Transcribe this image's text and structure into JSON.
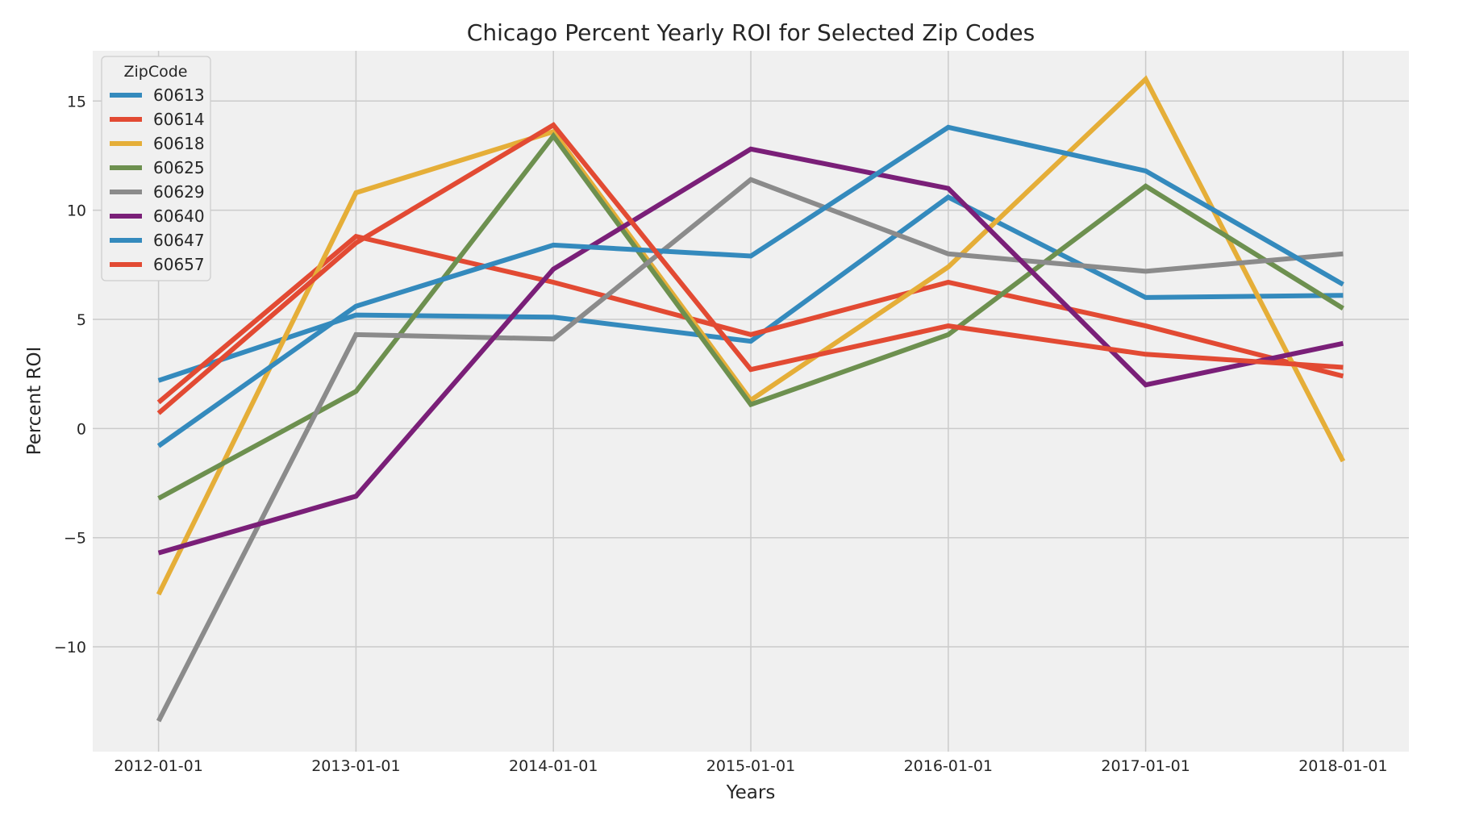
{
  "chart_data": {
    "type": "line",
    "title": "Chicago Percent Yearly ROI for Selected Zip Codes",
    "xlabel": "Years",
    "ylabel": "Percent ROI",
    "x": [
      "2012-01-01",
      "2013-01-01",
      "2014-01-01",
      "2015-01-01",
      "2016-01-01",
      "2017-01-01",
      "2018-01-01"
    ],
    "yticks": [
      -10,
      -5,
      0,
      5,
      10,
      15
    ],
    "ytick_labels": [
      "−10",
      "−5",
      "0",
      "5",
      "10",
      "15"
    ],
    "ylim": [
      -14.8,
      17.3
    ],
    "grid": true,
    "legend": {
      "title": "ZipCode",
      "placement": "top-left"
    },
    "series": [
      {
        "name": "60613",
        "color": "#348ABD",
        "values": [
          2.2,
          5.2,
          5.1,
          4.0,
          10.6,
          6.0,
          6.1
        ]
      },
      {
        "name": "60614",
        "color": "#E24A33",
        "values": [
          1.2,
          8.8,
          6.7,
          4.3,
          6.7,
          4.7,
          2.4
        ]
      },
      {
        "name": "60618",
        "color": "#E5AE38",
        "values": [
          -7.6,
          10.8,
          13.6,
          1.3,
          7.4,
          16.0,
          -1.5
        ]
      },
      {
        "name": "60625",
        "color": "#6D904F",
        "values": [
          -3.2,
          1.7,
          13.4,
          1.1,
          4.3,
          11.1,
          5.5
        ]
      },
      {
        "name": "60629",
        "color": "#8B8B8B",
        "values": [
          -13.4,
          4.3,
          4.1,
          11.4,
          8.0,
          7.2,
          8.0
        ]
      },
      {
        "name": "60640",
        "color": "#7A1F78",
        "values": [
          -5.7,
          -3.1,
          7.3,
          12.8,
          11.0,
          2.0,
          3.9
        ]
      },
      {
        "name": "60647",
        "color": "#348ABD",
        "values": [
          -0.8,
          5.6,
          8.4,
          7.9,
          13.8,
          11.8,
          6.6
        ]
      },
      {
        "name": "60657",
        "color": "#E24A33",
        "values": [
          0.7,
          8.5,
          13.9,
          2.7,
          4.7,
          3.4,
          2.8
        ]
      }
    ]
  }
}
